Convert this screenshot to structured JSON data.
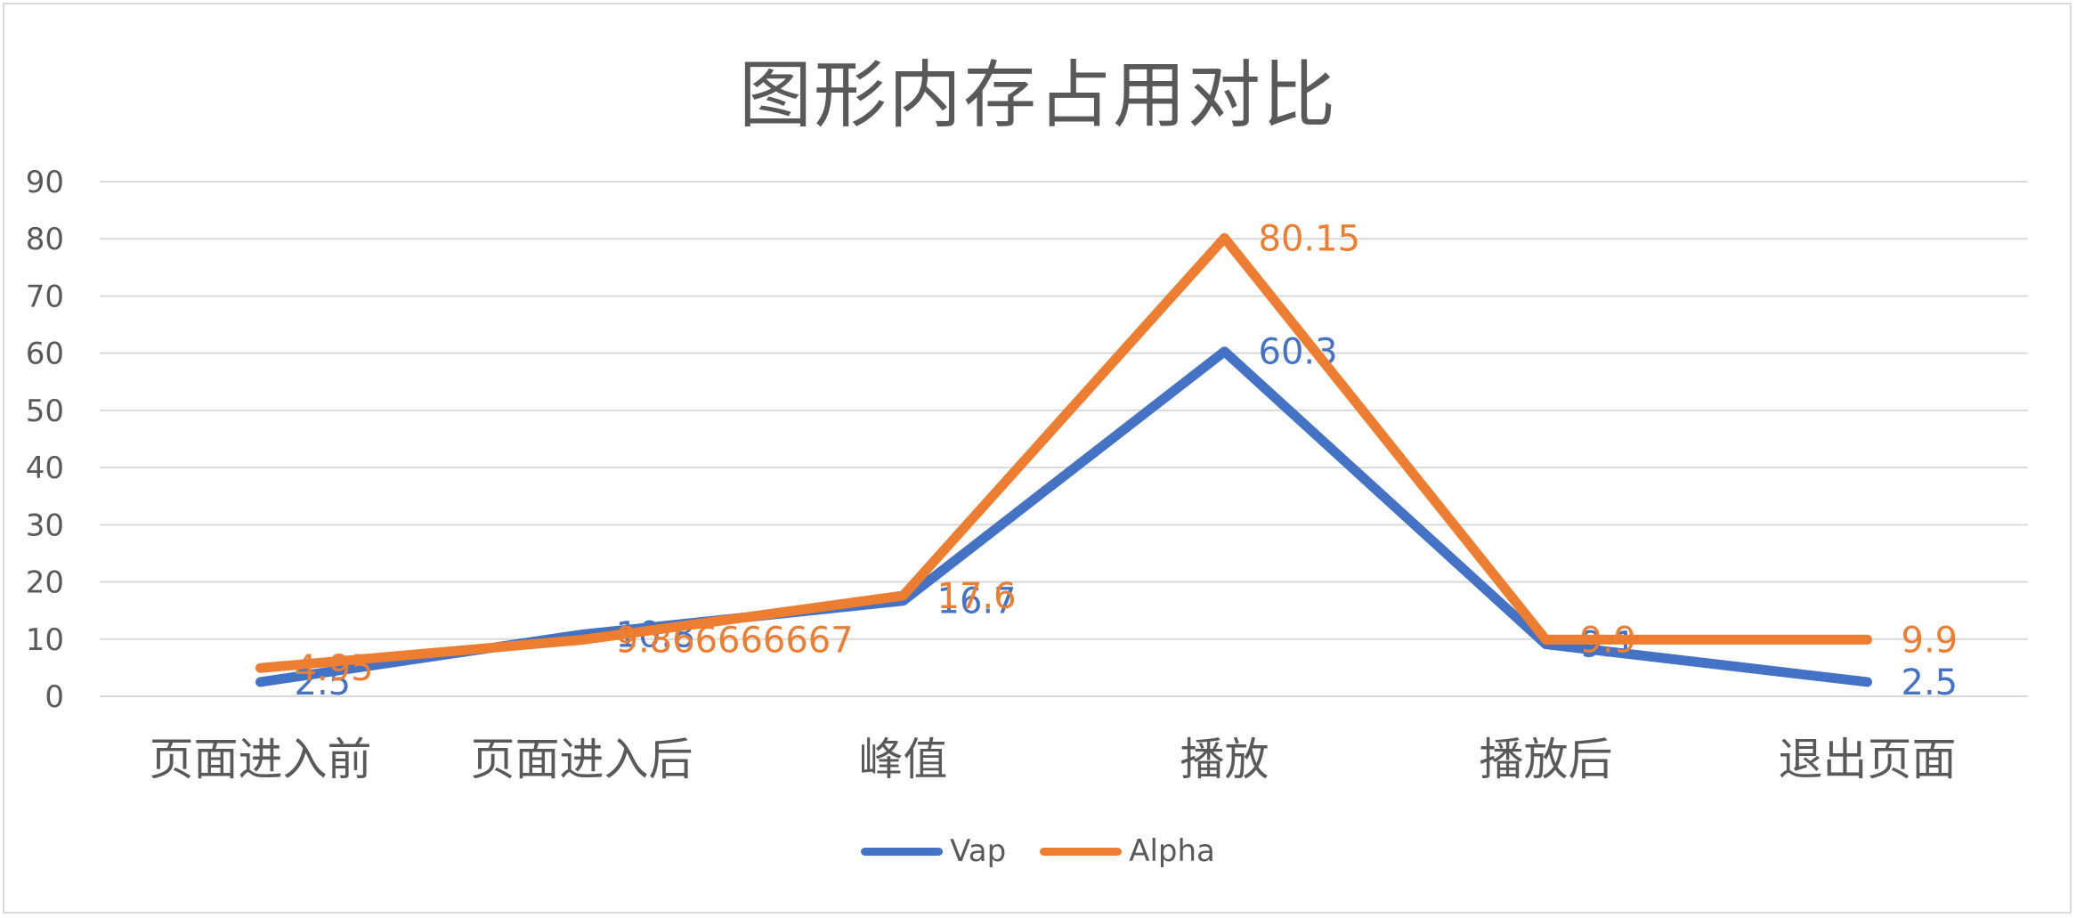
{
  "chart_data": {
    "type": "line",
    "title": "图形内存占用对比",
    "xlabel": "",
    "ylabel": "",
    "categories": [
      "页面进入前",
      "页面进入后",
      "峰值",
      "播放",
      "播放后",
      "退出页面"
    ],
    "series": [
      {
        "name": "Vap",
        "color": "#4472C4",
        "values": [
          2.5,
          10.8,
          16.7,
          60.3,
          9.1,
          2.5
        ],
        "labels": [
          "2.5",
          "10.8",
          "16.7",
          "60.3",
          "9.1",
          "2.5"
        ]
      },
      {
        "name": "Alpha",
        "color": "#ED7D31",
        "values": [
          4.95,
          9.866666667,
          17.6,
          80.15,
          9.9,
          9.9
        ],
        "labels": [
          "4.95",
          "9.866666667",
          "17.6",
          "80.15",
          "9.9",
          "9.9"
        ]
      }
    ],
    "ylim": [
      0,
      90
    ],
    "yticks": [
      0,
      10,
      20,
      30,
      40,
      50,
      60,
      70,
      80,
      90
    ],
    "grid": true,
    "legend_position": "bottom"
  }
}
